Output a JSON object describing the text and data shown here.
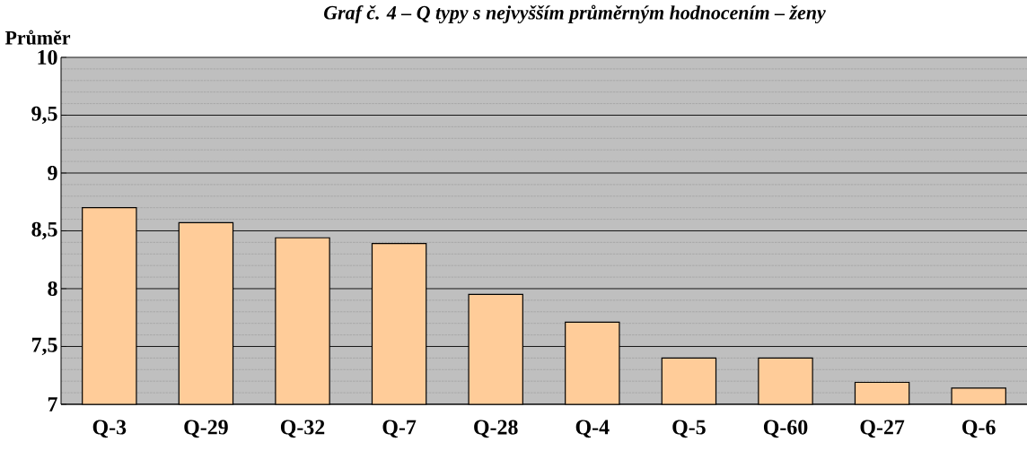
{
  "chart_data": {
    "type": "bar",
    "title": "Graf č. 4 – Q typy s nejvyšším průměrným hodnocením – ženy",
    "ylabel": "Průměr",
    "categories": [
      "Q-3",
      "Q-29",
      "Q-32",
      "Q-7",
      "Q-28",
      "Q-4",
      "Q-5",
      "Q-60",
      "Q-27",
      "Q-6"
    ],
    "values": [
      8.7,
      8.57,
      8.44,
      8.39,
      7.95,
      7.71,
      7.4,
      7.4,
      7.19,
      7.14
    ],
    "color": "#ffcc99",
    "ylim": [
      7,
      10
    ],
    "yticks": [
      7,
      {
        "value": 7.5,
        "label": "7,5"
      },
      8,
      {
        "value": 8.5,
        "label": "8,5"
      },
      9,
      {
        "value": 9.5,
        "label": "9,5"
      },
      10
    ],
    "grid": "y"
  }
}
